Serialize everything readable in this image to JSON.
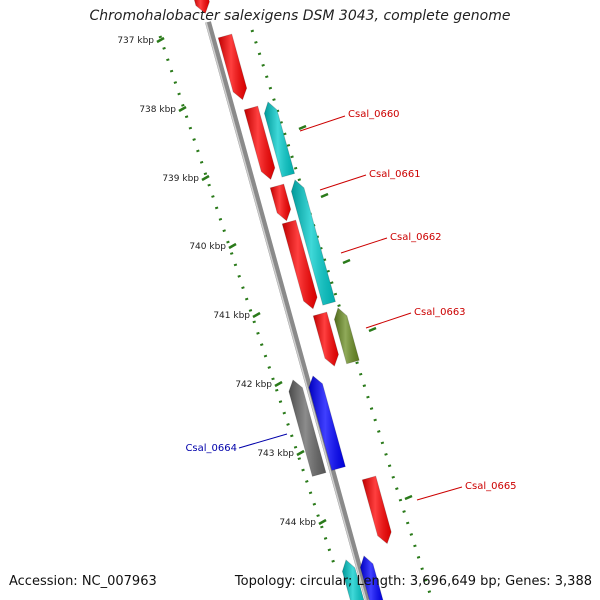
{
  "header": {
    "title": "Chromohalobacter salexigens DSM 3043, complete genome"
  },
  "footer": {
    "accession": "Accession: NC_007963",
    "summary": "Topology: circular; Length: 3,696,649 bp; Genes: 3,388"
  },
  "colors": {
    "backbone": "#8a8a8a",
    "ticks": "#2a7a1a",
    "red": "#ff0000",
    "cyan": "#00cccc",
    "olive": "#6b8e23",
    "gray": "#666666",
    "blue": "#0000ff",
    "label_red": "#cc0000",
    "label_blue": "#0000aa"
  },
  "ticks": [
    "737 kbp",
    "738 kbp",
    "739 kbp",
    "740 kbp",
    "741 kbp",
    "742 kbp",
    "743 kbp",
    "744 kbp"
  ],
  "gene_labels": [
    {
      "name": "Csal_0660",
      "color": "label_red"
    },
    {
      "name": "Csal_0661",
      "color": "label_red"
    },
    {
      "name": "Csal_0662",
      "color": "label_red"
    },
    {
      "name": "Csal_0663",
      "color": "label_red"
    },
    {
      "name": "Csal_0664",
      "color": "label_blue"
    },
    {
      "name": "Csal_0665",
      "color": "label_red"
    }
  ]
}
